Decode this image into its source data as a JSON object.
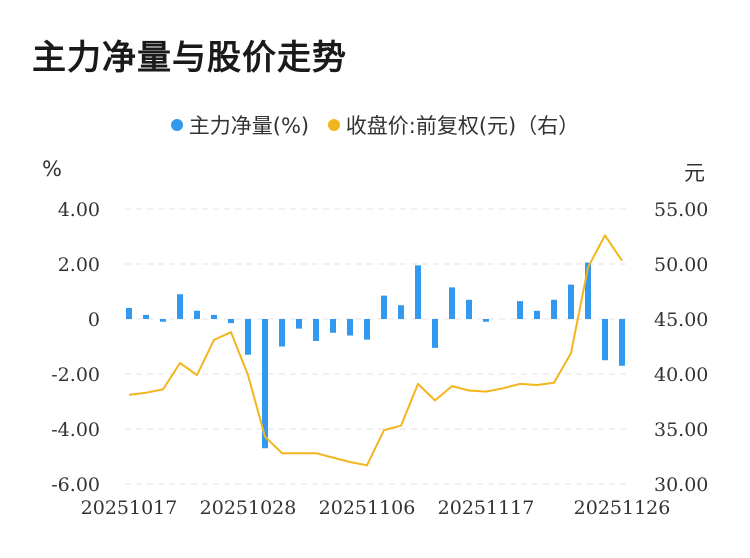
{
  "header": {
    "title": "主力净量与股价走势"
  },
  "chart_data": {
    "type": "bar+line",
    "title": "主力净量与股价走势",
    "legend": [
      {
        "name": "主力净量(%)",
        "color": "#3399ee"
      },
      {
        "name": "收盘价:前复权(元)（右）",
        "color": "#f2b61c"
      }
    ],
    "y_left_unit": "%",
    "y_right_unit": "元",
    "y_left_ticks": [
      "4.00",
      "2.00",
      "0",
      "-2.00",
      "-4.00",
      "-6.00"
    ],
    "y_right_ticks": [
      "55.00",
      "50.00",
      "45.00",
      "40.00",
      "35.00",
      "30.00"
    ],
    "x_ticks": [
      "20251017",
      "20251028",
      "20251106",
      "20251117",
      "20251126"
    ],
    "ylim_left": [
      -6,
      4
    ],
    "ylim_right": [
      30,
      55
    ],
    "bars": [
      0.4,
      0.15,
      -0.1,
      0.9,
      0.3,
      0.15,
      -0.15,
      -1.3,
      -4.7,
      -1.0,
      -0.35,
      -0.8,
      -0.5,
      -0.6,
      -0.75,
      0.85,
      0.5,
      1.95,
      -1.05,
      1.15,
      0.7,
      -0.1,
      0.0,
      0.65,
      0.3,
      0.7,
      1.25,
      2.05,
      -1.5,
      -1.7
    ],
    "close": [
      38.1,
      38.3,
      38.6,
      41.0,
      39.9,
      43.1,
      43.8,
      39.9,
      34.3,
      32.8,
      32.8,
      32.8,
      32.4,
      32.0,
      31.7,
      34.9,
      35.3,
      39.1,
      37.6,
      38.9,
      38.5,
      38.4,
      38.7,
      39.1,
      39.0,
      39.2,
      41.9,
      49.7,
      52.6,
      50.3
    ],
    "grid": true
  }
}
